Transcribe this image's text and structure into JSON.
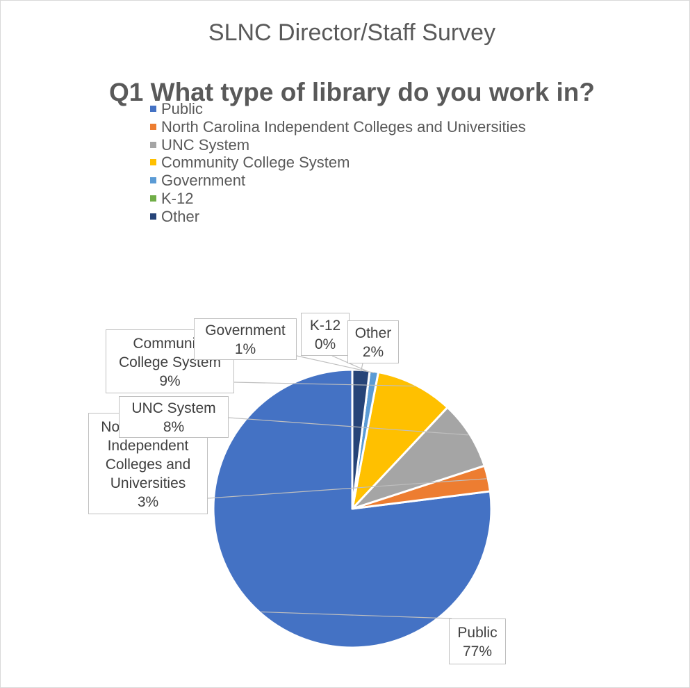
{
  "header": {
    "title": "SLNC Director/Staff Survey"
  },
  "chart_data": {
    "type": "pie",
    "title": "Q1 What type of library do you work in?",
    "legend_position": "top",
    "categories": [
      "Public",
      "North Carolina Independent Colleges and Universities",
      "UNC System",
      "Community College System",
      "Government",
      "K-12",
      "Other"
    ],
    "values": [
      77,
      3,
      8,
      9,
      1,
      0,
      2
    ],
    "value_unit": "%",
    "colors": [
      "#4472c4",
      "#ed7d31",
      "#a5a5a5",
      "#ffc000",
      "#5b9bd5",
      "#70ad47",
      "#264478"
    ],
    "data_labels": [
      {
        "lines": [
          "Public"
        ],
        "value": "77%"
      },
      {
        "lines": [
          "North Carolina",
          "Independent",
          "Colleges and",
          "Universities"
        ],
        "value": "3%"
      },
      {
        "lines": [
          "UNC System"
        ],
        "value": "8%"
      },
      {
        "lines": [
          "Community",
          "College System"
        ],
        "value": "9%"
      },
      {
        "lines": [
          "Government"
        ],
        "value": "1%"
      },
      {
        "lines": [
          "K-12"
        ],
        "value": "0%"
      },
      {
        "lines": [
          "Other"
        ],
        "value": "2%"
      }
    ]
  }
}
